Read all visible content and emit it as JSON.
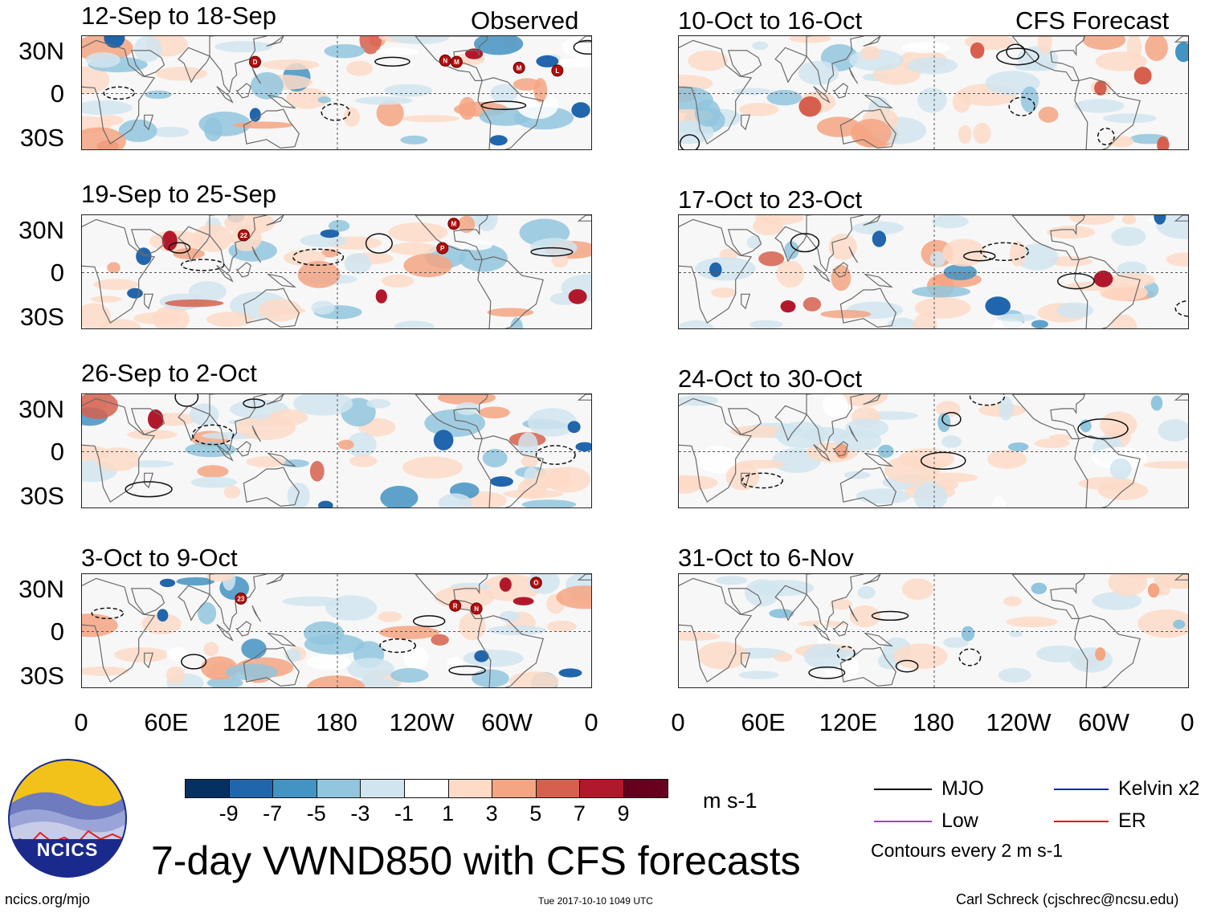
{
  "panels_observed": [
    {
      "period": "12-Sep to 18-Sep",
      "header_right": "Observed",
      "storms": [
        "D",
        "N",
        "M",
        "M",
        "L"
      ]
    },
    {
      "period": "19-Sep to 25-Sep",
      "header_right": "",
      "storms": [
        "22",
        "P",
        "M"
      ]
    },
    {
      "period": "26-Sep to 2-Oct",
      "header_right": "",
      "storms": []
    },
    {
      "period": "3-Oct to 9-Oct",
      "header_right": "",
      "storms": [
        "23",
        "R",
        "N",
        "O"
      ]
    }
  ],
  "panels_forecast": [
    {
      "period": "10-Oct to 16-Oct",
      "header_right": "CFS Forecast"
    },
    {
      "period": "17-Oct to 23-Oct",
      "header_right": ""
    },
    {
      "period": "24-Oct to 30-Oct",
      "header_right": ""
    },
    {
      "period": "31-Oct to 6-Nov",
      "header_right": ""
    }
  ],
  "lat_labels": [
    "30N",
    "0",
    "30S"
  ],
  "lon_labels": [
    "0",
    "60E",
    "120E",
    "180",
    "120W",
    "60W",
    "0"
  ],
  "colorbar": {
    "ticks": [
      "-9",
      "-7",
      "-5",
      "-3",
      "-1",
      "1",
      "3",
      "5",
      "7",
      "9"
    ],
    "units": "m s-1",
    "colors": [
      "#053061",
      "#2166ac",
      "#4393c3",
      "#92c5de",
      "#d1e5f0",
      "#ffffff",
      "#fddbc7",
      "#f4a582",
      "#d6604d",
      "#b2182b",
      "#67001f"
    ]
  },
  "title": "7-day VWND850 with CFS forecasts",
  "logo_text": "NCICS",
  "legend": {
    "mjo": "MJO",
    "kelvin": "Kelvin x2",
    "low": "Low",
    "er": "ER",
    "note": "Contours every 2 m s-1",
    "colors": {
      "mjo": "#000000",
      "kelvin": "#1020c0",
      "low": "#a040d0",
      "er": "#e01010"
    }
  },
  "footer": {
    "left": "ncics.org/mjo",
    "center": "Tue 2017-10-10 1049 UTC",
    "right": "Carl Schreck (cjschrec@ncsu.edu)"
  }
}
